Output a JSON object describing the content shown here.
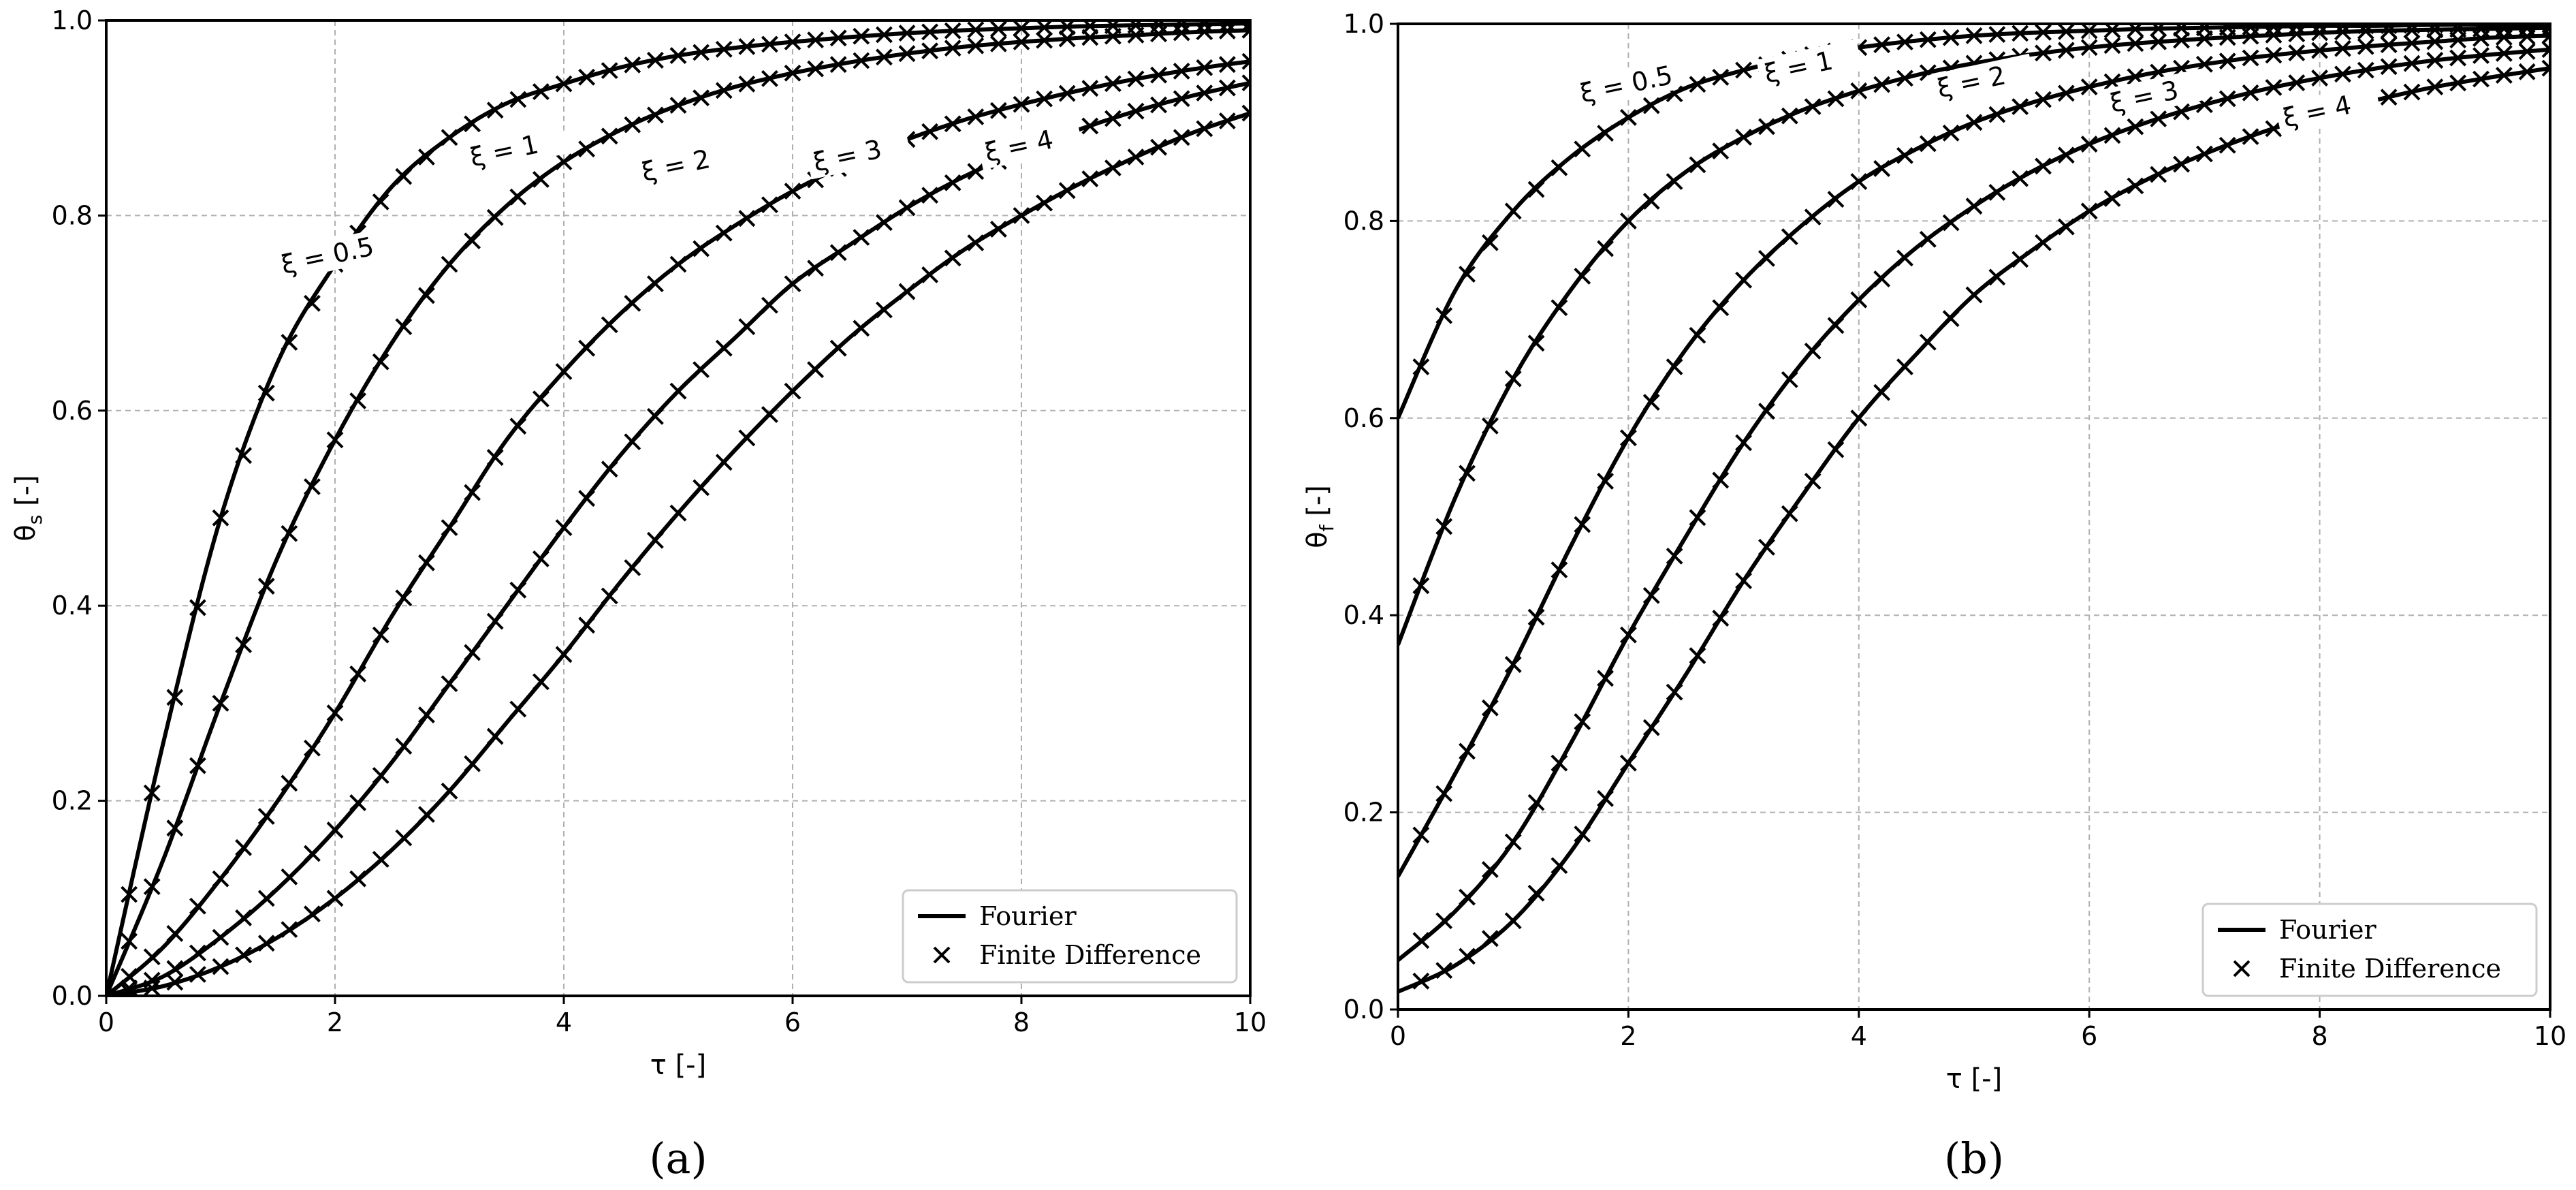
{
  "chart_data": [
    {
      "type": "line",
      "panel_label": "(a)",
      "xlabel": "τ [-]",
      "ylabel_main": "θ",
      "ylabel_sub": "s",
      "ylabel_unit": " [-]",
      "xlim": [
        0,
        10
      ],
      "ylim": [
        0,
        1
      ],
      "xticks": [
        "0",
        "2",
        "4",
        "6",
        "8",
        "10"
      ],
      "yticks": [
        "0.0",
        "0.2",
        "0.4",
        "0.6",
        "0.8",
        "1.0"
      ],
      "grid": true,
      "legend_position": "lower-right",
      "legend": [
        "Fourier",
        "Finite Difference"
      ],
      "x": [
        0.0,
        0.5,
        1.0,
        1.5,
        2.0,
        2.5,
        3.0,
        3.5,
        4.0,
        4.5,
        5.0,
        5.5,
        6.0,
        6.5,
        7.0,
        7.5,
        8.0,
        8.5,
        9.0,
        9.5,
        10.0
      ],
      "series": [
        {
          "name": "ξ = 0.5",
          "label": "ξ = 0.5",
          "label_at": [
            1.55,
            0.74
          ],
          "values": [
            0.0,
            0.26,
            0.49,
            0.65,
            0.75,
            0.83,
            0.88,
            0.915,
            0.935,
            0.952,
            0.964,
            0.972,
            0.978,
            0.983,
            0.987,
            0.99,
            0.992,
            0.994,
            0.995,
            0.996,
            0.997
          ]
        },
        {
          "name": "ξ = 1",
          "label": "ξ = 1",
          "label_at": [
            3.2,
            0.85
          ],
          "values": [
            0.0,
            0.14,
            0.3,
            0.45,
            0.57,
            0.67,
            0.75,
            0.81,
            0.855,
            0.888,
            0.913,
            0.932,
            0.946,
            0.957,
            0.966,
            0.973,
            0.978,
            0.982,
            0.985,
            0.988,
            0.99
          ]
        },
        {
          "name": "ξ = 2",
          "label": "ξ = 2",
          "label_at": [
            4.7,
            0.835
          ],
          "values": [
            0.0,
            0.05,
            0.12,
            0.2,
            0.29,
            0.39,
            0.48,
            0.57,
            0.64,
            0.7,
            0.75,
            0.79,
            0.825,
            0.854,
            0.878,
            0.898,
            0.914,
            0.928,
            0.94,
            0.95,
            0.958
          ]
        },
        {
          "name": "ξ = 3",
          "label": "ξ = 3",
          "label_at": [
            6.2,
            0.845
          ],
          "values": [
            0.0,
            0.02,
            0.06,
            0.11,
            0.17,
            0.24,
            0.32,
            0.4,
            0.48,
            0.555,
            0.62,
            0.675,
            0.73,
            0.77,
            0.808,
            0.84,
            0.866,
            0.888,
            0.907,
            0.923,
            0.936
          ]
        },
        {
          "name": "ξ = 4",
          "label": "ξ = 4",
          "label_at": [
            7.7,
            0.855
          ],
          "values": [
            0.0,
            0.01,
            0.03,
            0.06,
            0.1,
            0.15,
            0.21,
            0.28,
            0.35,
            0.425,
            0.495,
            0.56,
            0.62,
            0.675,
            0.722,
            0.765,
            0.8,
            0.832,
            0.86,
            0.885,
            0.905
          ]
        }
      ]
    },
    {
      "type": "line",
      "panel_label": "(b)",
      "xlabel": "τ [-]",
      "ylabel_main": "θ",
      "ylabel_sub": "f",
      "ylabel_unit": " [-]",
      "xlim": [
        0,
        10
      ],
      "ylim": [
        0,
        1
      ],
      "xticks": [
        "0",
        "2",
        "4",
        "6",
        "8",
        "10"
      ],
      "yticks": [
        "0.0",
        "0.2",
        "0.4",
        "0.6",
        "0.8",
        "1.0"
      ],
      "grid": true,
      "legend_position": "lower-right",
      "legend": [
        "Fourier",
        "Finite Difference"
      ],
      "x": [
        0.0,
        0.5,
        1.0,
        1.5,
        2.0,
        2.5,
        3.0,
        3.5,
        4.0,
        4.5,
        5.0,
        5.5,
        6.0,
        6.5,
        7.0,
        7.5,
        8.0,
        8.5,
        9.0,
        9.5,
        10.0
      ],
      "series": [
        {
          "name": "ξ = 0.5",
          "label": "ξ = 0.5",
          "label_at": [
            1.6,
            0.92
          ],
          "values": [
            0.6,
            0.73,
            0.81,
            0.865,
            0.905,
            0.935,
            0.953,
            0.967,
            0.976,
            0.983,
            0.988,
            0.991,
            0.993,
            0.995,
            0.996,
            0.997,
            0.998,
            0.998,
            0.999,
            0.999,
            0.999
          ]
        },
        {
          "name": "ξ = 1",
          "label": "ξ = 1",
          "label_at": [
            3.2,
            0.94
          ],
          "values": [
            0.37,
            0.52,
            0.64,
            0.73,
            0.8,
            0.85,
            0.885,
            0.912,
            0.932,
            0.948,
            0.96,
            0.969,
            0.976,
            0.981,
            0.985,
            0.988,
            0.991,
            0.993,
            0.994,
            0.995,
            0.996
          ]
        },
        {
          "name": "ξ = 2",
          "label": "ξ = 2",
          "label_at": [
            4.7,
            0.925
          ],
          "values": [
            0.135,
            0.24,
            0.35,
            0.47,
            0.58,
            0.67,
            0.74,
            0.795,
            0.84,
            0.873,
            0.9,
            0.92,
            0.936,
            0.949,
            0.959,
            0.967,
            0.973,
            0.978,
            0.982,
            0.986,
            0.988
          ]
        },
        {
          "name": "ξ = 3",
          "label": "ξ = 3",
          "label_at": [
            6.2,
            0.91
          ],
          "values": [
            0.05,
            0.1,
            0.17,
            0.27,
            0.38,
            0.48,
            0.575,
            0.655,
            0.72,
            0.773,
            0.815,
            0.85,
            0.878,
            0.9,
            0.918,
            0.933,
            0.945,
            0.955,
            0.963,
            0.969,
            0.974
          ]
        },
        {
          "name": "ξ = 4",
          "label": "ξ = 4",
          "label_at": [
            7.7,
            0.895
          ],
          "values": [
            0.018,
            0.045,
            0.09,
            0.16,
            0.25,
            0.34,
            0.435,
            0.52,
            0.6,
            0.665,
            0.725,
            0.77,
            0.81,
            0.842,
            0.868,
            0.89,
            0.908,
            0.923,
            0.936,
            0.946,
            0.955
          ]
        }
      ]
    }
  ]
}
